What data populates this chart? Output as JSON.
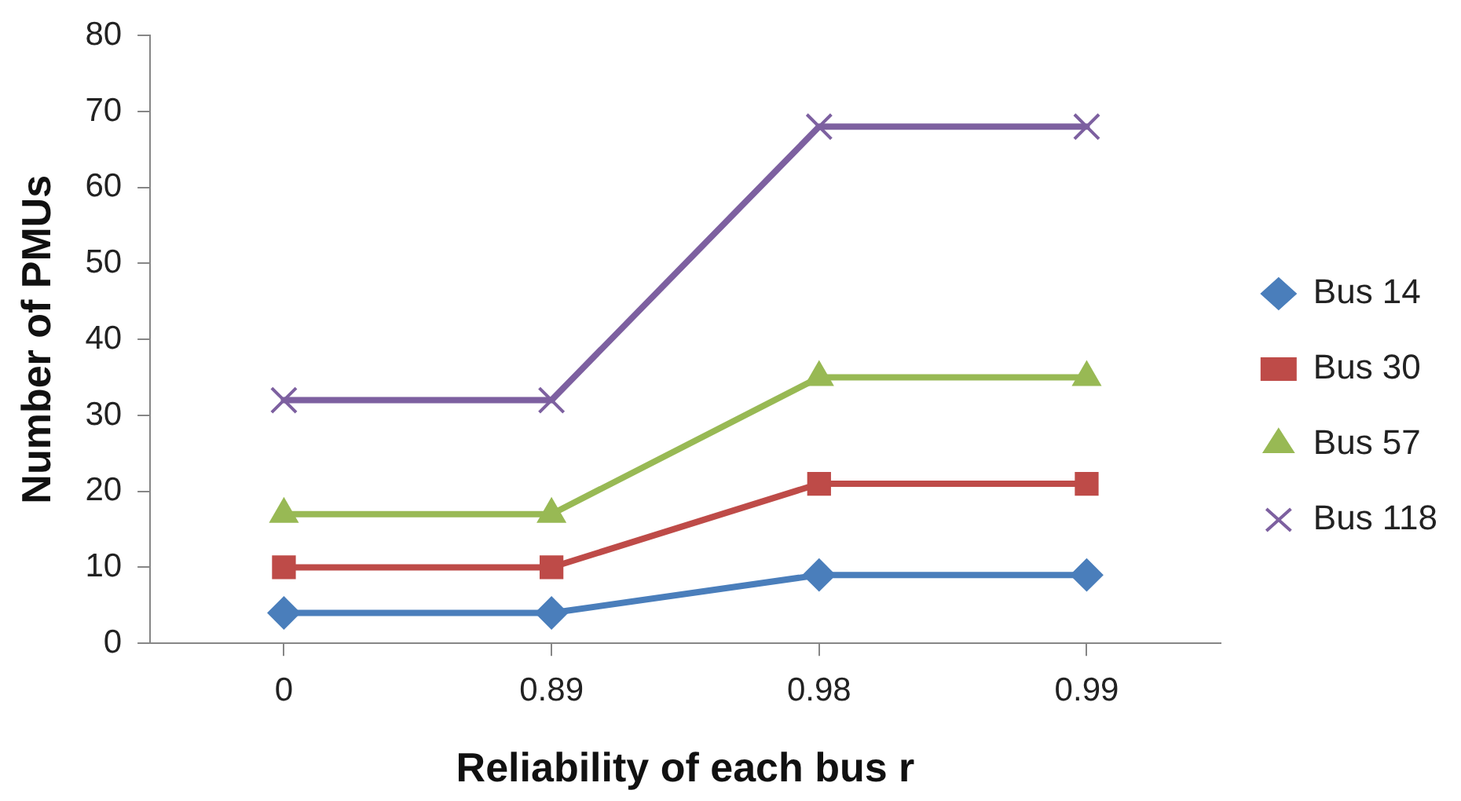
{
  "chart_data": {
    "type": "line",
    "xlabel": "Reliability of each bus r",
    "ylabel": "Number of PMUs",
    "categories": [
      "0",
      "0.89",
      "0.98",
      "0.99"
    ],
    "series": [
      {
        "name": "Bus 14",
        "color": "#4a7ebb",
        "marker": "diamond",
        "values": [
          4,
          4,
          9,
          9
        ]
      },
      {
        "name": "Bus 30",
        "color": "#be4b48",
        "marker": "square",
        "values": [
          10,
          10,
          21,
          21
        ]
      },
      {
        "name": "Bus 57",
        "color": "#98b954",
        "marker": "triangle",
        "values": [
          17,
          17,
          35,
          35
        ]
      },
      {
        "name": "Bus 118",
        "color": "#7d60a0",
        "marker": "cross",
        "values": [
          32,
          32,
          68,
          68
        ]
      }
    ],
    "ylim": [
      0,
      80
    ],
    "yticks": [
      0,
      10,
      20,
      30,
      40,
      50,
      60,
      70,
      80
    ],
    "grid": false,
    "legend": "right",
    "line_style": "solid"
  }
}
